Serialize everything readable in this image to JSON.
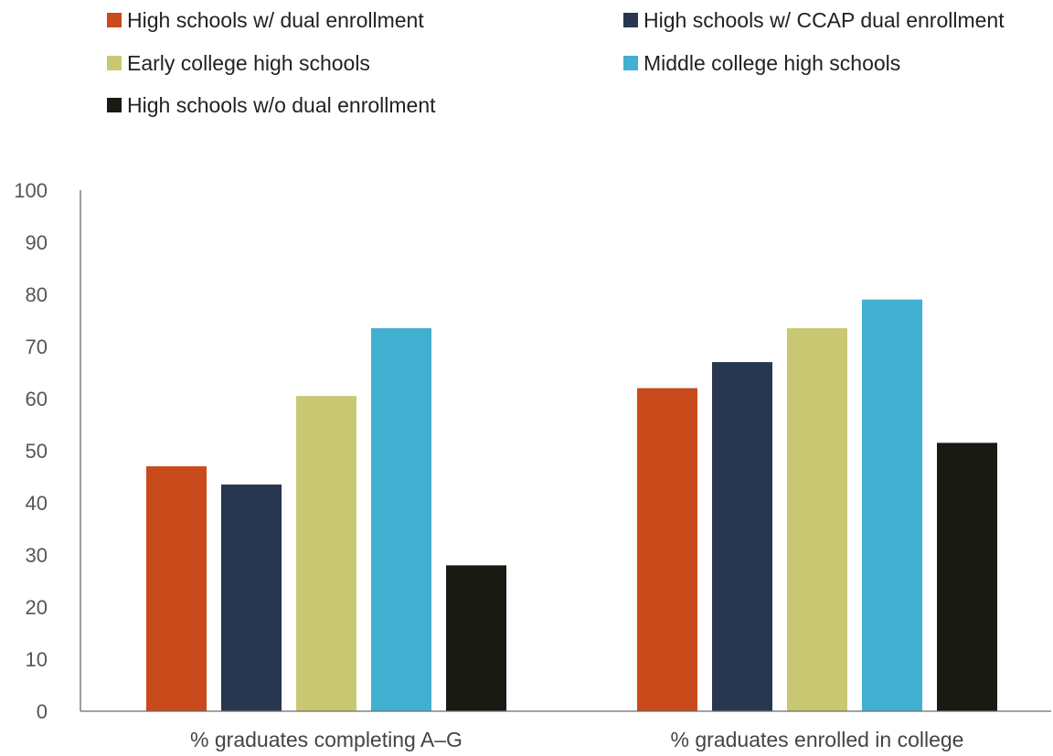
{
  "chart_data": {
    "type": "bar",
    "title": "",
    "xlabel": "",
    "ylabel": "",
    "ylim": [
      0,
      100
    ],
    "yticks": [
      0,
      10,
      20,
      30,
      40,
      50,
      60,
      70,
      80,
      90,
      100
    ],
    "grid": false,
    "legend_position": "top",
    "categories": [
      "% graduates completing A–G",
      "% graduates enrolled in college"
    ],
    "series": [
      {
        "name": "High schools w/ dual enrollment",
        "color": "#c94a1a",
        "values": [
          47,
          62
        ]
      },
      {
        "name": "High schools w/ CCAP dual enrollment",
        "color": "#283650",
        "values": [
          43.5,
          67
        ]
      },
      {
        "name": "Early college high schools",
        "color": "#c9c872",
        "values": [
          60.5,
          73.5
        ]
      },
      {
        "name": "Middle college high schools",
        "color": "#41afcf",
        "values": [
          73.5,
          79
        ]
      },
      {
        "name": "High schools w/o dual enrollment",
        "color": "#1a1a14",
        "values": [
          28,
          51.5
        ]
      }
    ]
  }
}
